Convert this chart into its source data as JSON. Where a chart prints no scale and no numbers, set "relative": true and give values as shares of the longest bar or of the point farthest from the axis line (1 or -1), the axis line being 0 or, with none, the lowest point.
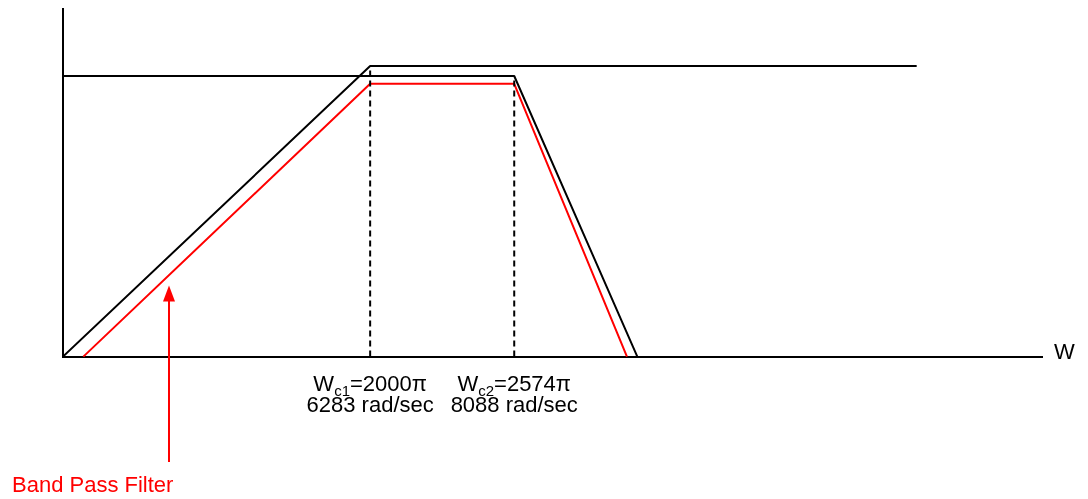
{
  "chart_data": {
    "type": "line",
    "relative": true,
    "xlabel": "W",
    "xlim": [
      2435,
      14700
    ],
    "xticks": [
      {
        "value": 6283,
        "label": "6283 rad/sec"
      },
      {
        "value": 8088,
        "label": "8088 rad/sec"
      }
    ],
    "series": [
      {
        "color": "#000000",
        "x": [
          2435,
          6283,
          13130
        ],
        "values": [
          0,
          1,
          1
        ]
      },
      {
        "color": "#000000",
        "x": [
          2435,
          8088,
          9630
        ],
        "values": [
          0.966,
          0.966,
          0
        ]
      },
      {
        "color": "#ff0000",
        "x": [
          2690,
          6283,
          8088,
          9500
        ],
        "values": [
          0,
          0.939,
          0.939,
          0
        ]
      }
    ],
    "ref_lines": [
      {
        "axis": "x",
        "value": 6283,
        "color": "#000000",
        "line_style": "dashed"
      },
      {
        "axis": "x",
        "value": 8088,
        "color": "#000000",
        "line_style": "dashed"
      }
    ],
    "annotations": [
      "W$_{c1}$=2000π",
      "W$_{c2}$=2574π",
      "Band Pass Filter"
    ],
    "legend": false,
    "grid": false,
    "marker": "none",
    "line_style": "solid"
  }
}
